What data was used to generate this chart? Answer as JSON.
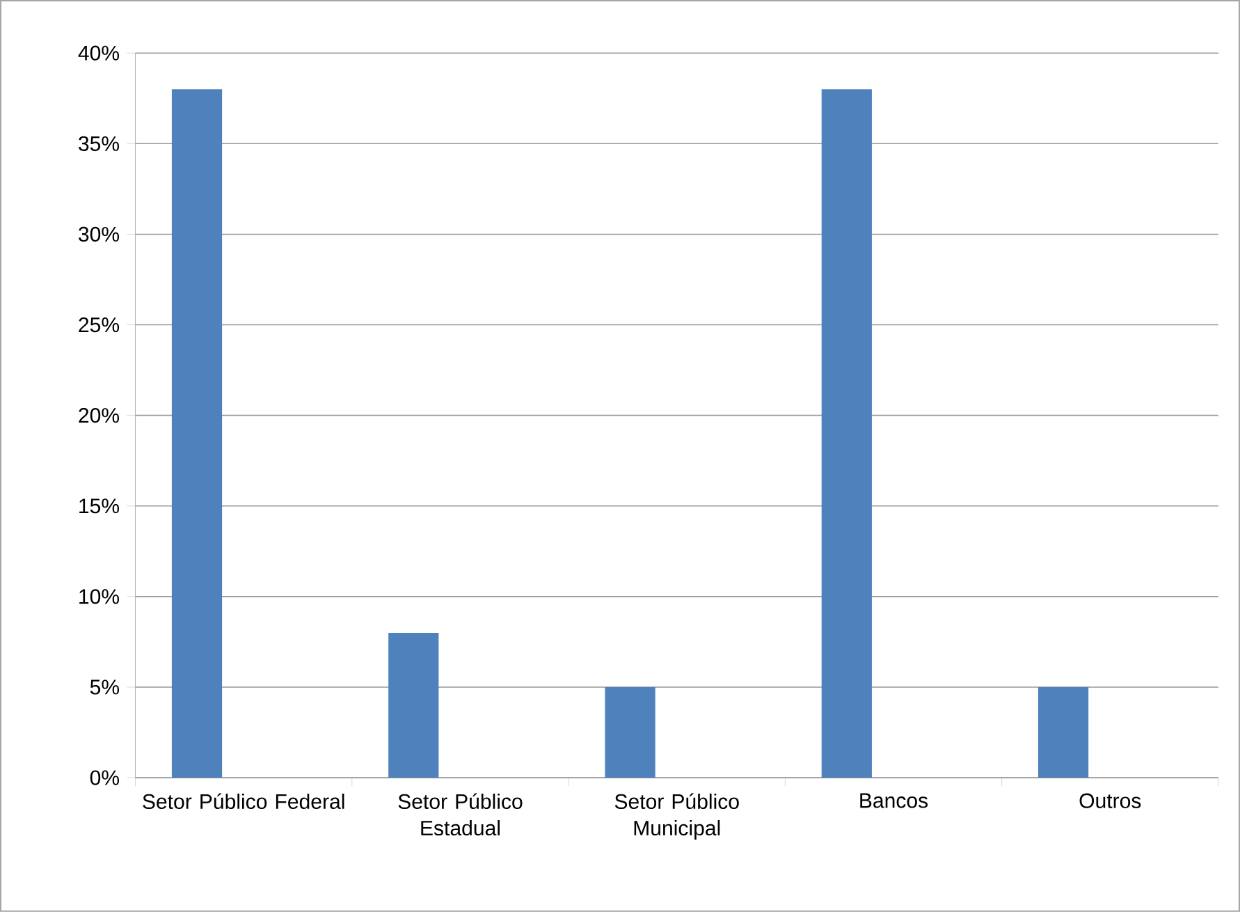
{
  "chart_data": {
    "type": "bar",
    "categories": [
      "Setor Público Federal",
      "Setor Público Estadual",
      "Setor Público Municipal",
      "Bancos",
      "Outros"
    ],
    "values": [
      38,
      8,
      5,
      38,
      5
    ],
    "color": "#4f81bd",
    "ylim": [
      0,
      40
    ],
    "yticks": [
      {
        "value": 0,
        "label": "0%"
      },
      {
        "value": 5,
        "label": "5%"
      },
      {
        "value": 10,
        "label": "10%"
      },
      {
        "value": 15,
        "label": "15%"
      },
      {
        "value": 20,
        "label": "20%"
      },
      {
        "value": 25,
        "label": "25%"
      },
      {
        "value": 30,
        "label": "30%"
      },
      {
        "value": 35,
        "label": "35%"
      },
      {
        "value": 40,
        "label": "40%"
      }
    ],
    "grid": "y"
  }
}
